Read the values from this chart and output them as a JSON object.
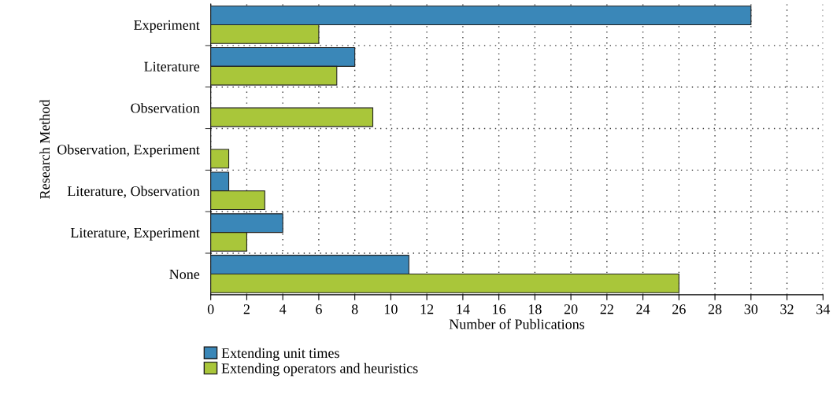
{
  "chart_data": {
    "type": "bar",
    "orientation": "horizontal",
    "xlabel": "Number of Publications",
    "ylabel": "Research Method",
    "categories": [
      "Experiment",
      "Literature",
      "Observation",
      "Observation, Experiment",
      "Literature, Observation",
      "Literature, Experiment",
      "None"
    ],
    "series": [
      {
        "name": "Extending unit times",
        "color": "#3a87b8",
        "values": [
          30,
          8,
          0,
          0,
          1,
          4,
          11
        ]
      },
      {
        "name": "Extending operators and heuristics",
        "color": "#a9c63a",
        "values": [
          6,
          7,
          9,
          1,
          3,
          2,
          26
        ]
      }
    ],
    "xlim": [
      0,
      34
    ],
    "xticks": [
      0,
      2,
      4,
      6,
      8,
      10,
      12,
      14,
      16,
      18,
      20,
      22,
      24,
      26,
      28,
      30,
      32,
      34
    ],
    "grid": true,
    "legend": "bottom left"
  }
}
